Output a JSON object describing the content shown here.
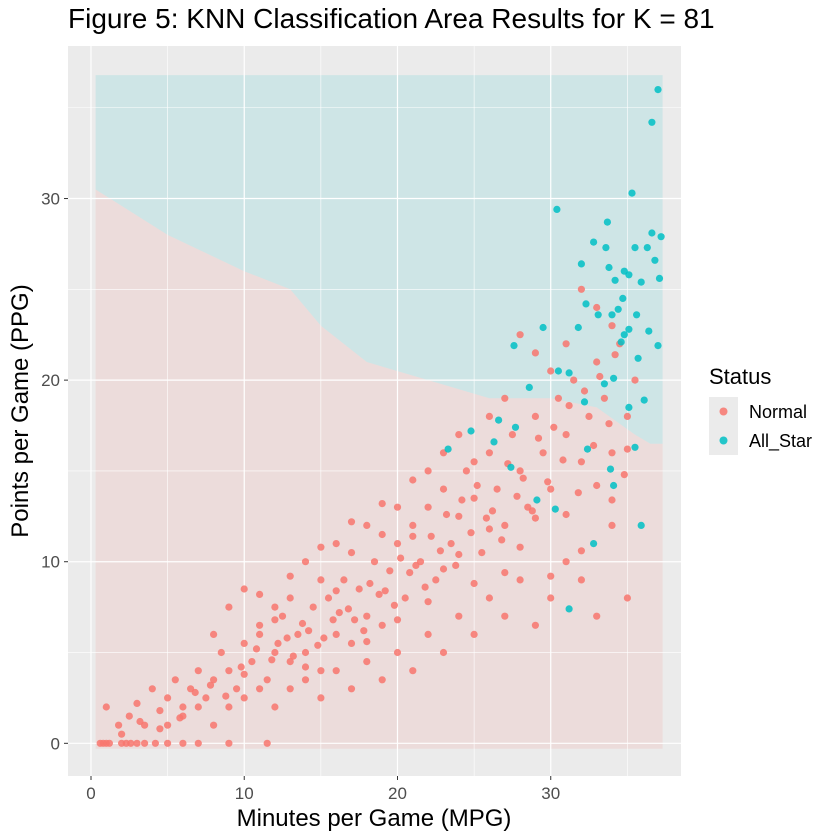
{
  "chart_data": {
    "type": "scatter",
    "title": "Figure 5: KNN Classification Area Results for K = 81",
    "xlabel": "Minutes per Game (MPG)",
    "ylabel": "Points per Game (PPG)",
    "xlim": [
      -1.5,
      38.5
    ],
    "ylim": [
      -1.8,
      38.4
    ],
    "xticks": [
      0,
      10,
      20,
      30
    ],
    "xtick_labels": [
      "0",
      "10",
      "20",
      "30"
    ],
    "yticks": [
      0,
      10,
      20,
      30
    ],
    "ytick_labels": [
      "0",
      "10",
      "20",
      "30"
    ],
    "grid": true,
    "legend": {
      "title": "Status",
      "position": "right",
      "entries": [
        {
          "label": "Normal",
          "color": "#F8766D"
        },
        {
          "label": "All_Star",
          "color": "#00BFC4"
        }
      ]
    },
    "background_region": {
      "x_range": [
        0.3,
        37.3
      ],
      "y_range": [
        -0.3,
        36.8
      ],
      "boundary_x": [
        0.3,
        5,
        10,
        13,
        15,
        18,
        22,
        26,
        28,
        30,
        33,
        35.5,
        36.5,
        37.3
      ],
      "boundary_y": [
        30.5,
        28,
        26,
        25,
        23,
        21,
        20,
        19,
        19,
        19,
        18.5,
        17,
        16.5,
        16.5
      ],
      "colors": {
        "Normal": "#F8766D",
        "All_Star": "#00BFC4"
      }
    },
    "series": [
      {
        "name": "Normal",
        "color": "#F8766D",
        "points": [
          [
            0.6,
            0
          ],
          [
            0.8,
            0
          ],
          [
            1,
            0
          ],
          [
            1.2,
            0
          ],
          [
            2,
            0
          ],
          [
            2.3,
            0
          ],
          [
            2.6,
            0
          ],
          [
            3,
            0
          ],
          [
            3.5,
            0
          ],
          [
            4.2,
            0
          ],
          [
            5,
            0
          ],
          [
            6,
            0
          ],
          [
            7,
            0
          ],
          [
            9,
            0
          ],
          [
            11.5,
            0
          ],
          [
            1,
            2
          ],
          [
            1.8,
            1
          ],
          [
            2.5,
            1.5
          ],
          [
            3,
            2.2
          ],
          [
            3.5,
            1
          ],
          [
            4,
            3
          ],
          [
            4.5,
            1.8
          ],
          [
            5,
            2.5
          ],
          [
            5.5,
            3.5
          ],
          [
            6,
            2
          ],
          [
            6.5,
            3
          ],
          [
            7,
            4
          ],
          [
            7.5,
            2.5
          ],
          [
            8,
            3.5
          ],
          [
            8.5,
            5
          ],
          [
            9,
            4
          ],
          [
            9.5,
            3
          ],
          [
            10,
            5.5
          ],
          [
            10.5,
            4.5
          ],
          [
            11,
            6
          ],
          [
            11.5,
            3.5
          ],
          [
            12,
            5
          ],
          [
            12.5,
            7
          ],
          [
            13,
            4.5
          ],
          [
            13.5,
            6
          ],
          [
            14,
            5
          ],
          [
            14.5,
            7.5
          ],
          [
            15,
            4
          ],
          [
            15.5,
            8
          ],
          [
            16,
            6
          ],
          [
            16.5,
            9
          ],
          [
            17,
            5.5
          ],
          [
            17.5,
            8.5
          ],
          [
            18,
            7
          ],
          [
            18.5,
            10
          ],
          [
            19,
            6.5
          ],
          [
            19.5,
            9.5
          ],
          [
            20,
            11
          ],
          [
            20.5,
            8
          ],
          [
            21,
            12
          ],
          [
            21.5,
            10
          ],
          [
            22,
            13
          ],
          [
            22.5,
            9
          ],
          [
            23,
            14
          ],
          [
            23.5,
            11
          ],
          [
            24,
            12.5
          ],
          [
            24.5,
            15
          ],
          [
            25,
            13.5
          ],
          [
            25.5,
            10.5
          ],
          [
            26,
            16
          ],
          [
            26.5,
            14
          ],
          [
            27,
            12
          ],
          [
            27.5,
            17
          ],
          [
            28,
            15
          ],
          [
            28.5,
            13
          ],
          [
            29,
            18
          ],
          [
            29.5,
            16
          ],
          [
            30,
            14
          ],
          [
            30.5,
            19
          ],
          [
            31,
            17
          ],
          [
            31.5,
            20
          ],
          [
            32,
            15.5
          ],
          [
            32.5,
            18
          ],
          [
            33,
            21
          ],
          [
            33.5,
            19
          ],
          [
            34,
            16
          ],
          [
            34.5,
            22
          ],
          [
            35,
            18
          ],
          [
            35.5,
            20
          ],
          [
            10,
            8.5
          ],
          [
            11,
            6.5
          ],
          [
            12,
            7.5
          ],
          [
            13,
            8
          ],
          [
            14,
            10
          ],
          [
            15,
            9
          ],
          [
            16,
            11
          ],
          [
            17,
            10.5
          ],
          [
            18,
            12
          ],
          [
            19,
            11.5
          ],
          [
            20,
            13
          ],
          [
            21,
            14.5
          ],
          [
            22,
            15
          ],
          [
            23,
            16
          ],
          [
            24,
            17
          ],
          [
            25,
            15.5
          ],
          [
            26,
            18
          ],
          [
            27,
            19
          ],
          [
            28,
            22.5
          ],
          [
            29,
            21.5
          ],
          [
            30,
            20.5
          ],
          [
            31,
            22
          ],
          [
            32,
            25
          ],
          [
            33,
            24
          ],
          [
            34,
            23
          ],
          [
            5,
            1
          ],
          [
            6,
            1.5
          ],
          [
            7,
            2
          ],
          [
            8,
            1
          ],
          [
            9,
            2
          ],
          [
            10,
            2.5
          ],
          [
            11,
            3
          ],
          [
            12,
            2
          ],
          [
            13,
            3
          ],
          [
            14,
            3.5
          ],
          [
            15,
            2.5
          ],
          [
            16,
            4
          ],
          [
            17,
            3
          ],
          [
            18,
            4.5
          ],
          [
            19,
            3.5
          ],
          [
            20,
            5
          ],
          [
            21,
            4
          ],
          [
            22,
            6
          ],
          [
            23,
            5
          ],
          [
            24,
            7
          ],
          [
            25,
            6
          ],
          [
            26,
            8
          ],
          [
            27,
            7
          ],
          [
            28,
            9
          ],
          [
            29,
            6.5
          ],
          [
            30,
            8
          ],
          [
            31,
            10
          ],
          [
            32,
            9
          ],
          [
            33,
            7
          ],
          [
            34,
            12
          ],
          [
            35,
            8
          ],
          [
            2,
            0.5
          ],
          [
            3.2,
            1.2
          ],
          [
            4.5,
            0.8
          ],
          [
            5.8,
            1.4
          ],
          [
            6.8,
            2.8
          ],
          [
            7.8,
            3.2
          ],
          [
            8.8,
            2.6
          ],
          [
            9.8,
            4.2
          ],
          [
            10.8,
            5.2
          ],
          [
            11.8,
            4.6
          ],
          [
            12.8,
            5.8
          ],
          [
            13.8,
            6.6
          ],
          [
            14.8,
            5.4
          ],
          [
            15.8,
            6.8
          ],
          [
            16.8,
            7.4
          ],
          [
            17.8,
            6.2
          ],
          [
            18.8,
            8.2
          ],
          [
            19.8,
            7.6
          ],
          [
            20.8,
            9.4
          ],
          [
            21.8,
            8.6
          ],
          [
            22.8,
            10.6
          ],
          [
            23.8,
            9.8
          ],
          [
            24.8,
            11.6
          ],
          [
            25.8,
            12.4
          ],
          [
            26.8,
            11.2
          ],
          [
            27.8,
            13.6
          ],
          [
            28.8,
            12.8
          ],
          [
            29.8,
            14.4
          ],
          [
            30.8,
            15.6
          ],
          [
            31.8,
            13.8
          ],
          [
            32.8,
            16.4
          ],
          [
            33.8,
            17.6
          ],
          [
            34.8,
            14.8
          ],
          [
            12.2,
            5.5
          ],
          [
            13.2,
            4.8
          ],
          [
            14.2,
            6.2
          ],
          [
            15.2,
            5.8
          ],
          [
            16.2,
            7.2
          ],
          [
            17.2,
            6.8
          ],
          [
            18.2,
            8.8
          ],
          [
            19.2,
            8.4
          ],
          [
            20.2,
            10.2
          ],
          [
            21.2,
            9.8
          ],
          [
            22.2,
            11.4
          ],
          [
            23.2,
            12.6
          ],
          [
            24.2,
            13.4
          ],
          [
            25.2,
            14.2
          ],
          [
            26.2,
            12.8
          ],
          [
            27.2,
            15.4
          ],
          [
            28.2,
            14.6
          ],
          [
            29.2,
            16.8
          ],
          [
            30.2,
            17.4
          ],
          [
            31.2,
            18.6
          ],
          [
            32.2,
            19.4
          ],
          [
            33.2,
            20.2
          ],
          [
            34.2,
            21.4
          ],
          [
            8,
            6
          ],
          [
            9,
            7.5
          ],
          [
            10,
            3.8
          ],
          [
            11,
            8.2
          ],
          [
            12,
            6.8
          ],
          [
            13,
            9.2
          ],
          [
            14,
            4.2
          ],
          [
            15,
            10.8
          ],
          [
            16,
            8.4
          ],
          [
            17,
            12.2
          ],
          [
            18,
            5.6
          ],
          [
            19,
            13.2
          ],
          [
            20,
            6.8
          ],
          [
            21,
            11.4
          ],
          [
            22,
            7.8
          ],
          [
            23,
            9.6
          ],
          [
            24,
            10.4
          ],
          [
            25,
            8.8
          ],
          [
            26,
            11.8
          ],
          [
            27,
            9.4
          ],
          [
            28,
            10.8
          ],
          [
            29,
            12.4
          ],
          [
            30,
            9.2
          ],
          [
            31,
            12.6
          ],
          [
            32,
            10.6
          ],
          [
            33,
            14.2
          ],
          [
            34,
            13.4
          ],
          [
            35,
            16.2
          ]
        ]
      },
      {
        "name": "All_Star",
        "color": "#00BFC4",
        "points": [
          [
            37,
            36
          ],
          [
            36.6,
            34.2
          ],
          [
            35.3,
            30.3
          ],
          [
            30.4,
            29.4
          ],
          [
            33.7,
            28.7
          ],
          [
            36.6,
            28.1
          ],
          [
            37.2,
            27.9
          ],
          [
            32.8,
            27.6
          ],
          [
            33.6,
            27.3
          ],
          [
            35.5,
            27.3
          ],
          [
            36.3,
            27.3
          ],
          [
            36.8,
            26.6
          ],
          [
            33.8,
            26.2
          ],
          [
            34.8,
            26
          ],
          [
            35.1,
            25.8
          ],
          [
            32,
            26.4
          ],
          [
            34.2,
            25.5
          ],
          [
            35.9,
            25.4
          ],
          [
            37.1,
            25.6
          ],
          [
            32.3,
            24.2
          ],
          [
            34.7,
            24.5
          ],
          [
            34.4,
            23.9
          ],
          [
            34,
            23.6
          ],
          [
            35.6,
            23.6
          ],
          [
            33.1,
            23.6
          ],
          [
            31.8,
            22.9
          ],
          [
            35.1,
            22.8
          ],
          [
            36.4,
            22.7
          ],
          [
            34.8,
            22.5
          ],
          [
            34.6,
            22.1
          ],
          [
            29.5,
            22.9
          ],
          [
            37,
            21.9
          ],
          [
            35.7,
            21.2
          ],
          [
            31.2,
            20.4
          ],
          [
            34.1,
            20.1
          ],
          [
            33.5,
            19.8
          ],
          [
            30.5,
            20.5
          ],
          [
            28.6,
            19.6
          ],
          [
            32.2,
            18.8
          ],
          [
            35.1,
            18.5
          ],
          [
            36.1,
            18.9
          ],
          [
            27.7,
            17.4
          ],
          [
            26.3,
            16.6
          ],
          [
            23.3,
            16.2
          ],
          [
            32.4,
            16.2
          ],
          [
            35.5,
            16.3
          ],
          [
            24.8,
            17.2
          ],
          [
            27.4,
            15.2
          ],
          [
            33.9,
            15.1
          ],
          [
            29.1,
            13.4
          ],
          [
            30.3,
            12.9
          ],
          [
            34.1,
            14.2
          ],
          [
            35.9,
            12
          ],
          [
            31.2,
            7.4
          ],
          [
            27.6,
            21.9
          ],
          [
            26.6,
            17.8
          ],
          [
            32.8,
            11
          ]
        ]
      }
    ]
  }
}
